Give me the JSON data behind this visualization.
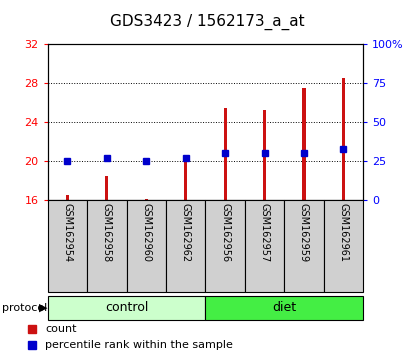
{
  "title": "GDS3423 / 1562173_a_at",
  "samples": [
    "GSM162954",
    "GSM162958",
    "GSM162960",
    "GSM162962",
    "GSM162956",
    "GSM162957",
    "GSM162959",
    "GSM162961"
  ],
  "count_values": [
    16.5,
    18.5,
    16.1,
    20.1,
    25.5,
    25.2,
    27.5,
    28.5
  ],
  "percentile_values": [
    25,
    27,
    25,
    27,
    30,
    30,
    30,
    33
  ],
  "groups": [
    {
      "label": "control",
      "indices": [
        0,
        1,
        2,
        3
      ],
      "color": "#ccffcc"
    },
    {
      "label": "diet",
      "indices": [
        4,
        5,
        6,
        7
      ],
      "color": "#44ee44"
    }
  ],
  "bar_color": "#cc1111",
  "dot_color": "#0000cc",
  "bar_bottom": 16,
  "ylim_left": [
    16,
    32
  ],
  "ylim_right": [
    0,
    100
  ],
  "yticks_left": [
    16,
    20,
    24,
    28,
    32
  ],
  "yticks_right": [
    0,
    25,
    50,
    75,
    100
  ],
  "ytick_labels_right": [
    "0",
    "25",
    "50",
    "75",
    "100%"
  ],
  "bg_color": "#ffffff",
  "bar_width": 0.08,
  "title_fontsize": 11,
  "tick_fontsize": 8,
  "label_fontsize": 7,
  "protocol_label": "protocol",
  "legend_count": "count",
  "legend_percentile": "percentile rank within the sample"
}
